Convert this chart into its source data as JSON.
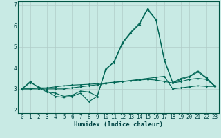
{
  "title": "",
  "xlabel": "Humidex (Indice chaleur)",
  "bg_color": "#c8eae4",
  "grid_color": "#b0ccc8",
  "line_color": "#006655",
  "xlim": [
    -0.5,
    23.5
  ],
  "ylim": [
    1.85,
    7.15
  ],
  "yticks": [
    2,
    3,
    4,
    5,
    6,
    7
  ],
  "xticks": [
    0,
    1,
    2,
    3,
    4,
    5,
    6,
    7,
    8,
    9,
    10,
    11,
    12,
    13,
    14,
    15,
    16,
    17,
    18,
    19,
    20,
    21,
    22,
    23
  ],
  "series": [
    [
      3.0,
      3.3,
      3.1,
      2.9,
      2.65,
      2.6,
      2.65,
      2.8,
      2.4,
      2.65,
      3.9,
      4.3,
      5.2,
      5.7,
      6.1,
      6.8,
      6.3,
      4.4,
      3.3,
      3.5,
      3.6,
      3.85,
      3.55,
      3.15
    ],
    [
      3.0,
      3.35,
      3.05,
      2.85,
      2.8,
      2.65,
      2.7,
      2.9,
      2.85,
      2.65,
      3.95,
      4.25,
      5.15,
      5.65,
      6.05,
      6.75,
      6.28,
      4.35,
      3.28,
      3.45,
      3.58,
      3.8,
      3.52,
      3.12
    ],
    [
      3.0,
      3.0,
      3.0,
      3.0,
      3.0,
      3.0,
      3.05,
      3.1,
      3.15,
      3.2,
      3.25,
      3.3,
      3.35,
      3.4,
      3.45,
      3.5,
      3.55,
      3.6,
      3.0,
      3.05,
      3.1,
      3.15,
      3.12,
      3.12
    ],
    [
      3.0,
      3.0,
      3.05,
      3.05,
      3.1,
      3.15,
      3.18,
      3.2,
      3.22,
      3.25,
      3.28,
      3.32,
      3.35,
      3.38,
      3.42,
      3.45,
      3.42,
      3.35,
      3.28,
      3.35,
      3.45,
      3.5,
      3.45,
      3.15
    ]
  ],
  "tick_fontsize": 5.5,
  "xlabel_fontsize": 6.5,
  "xlabel_color": "#004444",
  "tick_color": "#004444"
}
